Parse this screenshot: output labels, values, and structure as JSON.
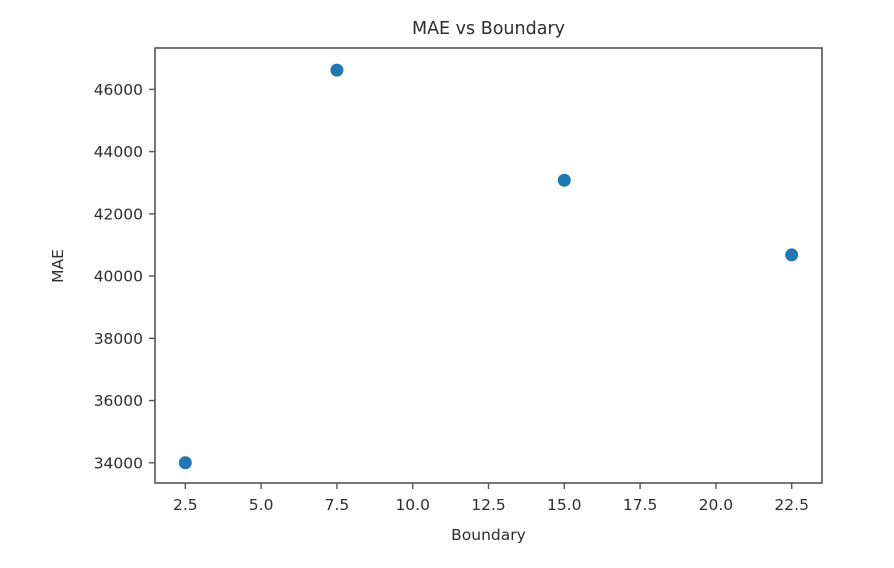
{
  "chart_data": {
    "type": "scatter",
    "title": "MAE vs Boundary",
    "xlabel": "Boundary",
    "ylabel": "MAE",
    "points": [
      {
        "x": 2.5,
        "y": 34000
      },
      {
        "x": 7.5,
        "y": 46620
      },
      {
        "x": 15.0,
        "y": 43080
      },
      {
        "x": 22.5,
        "y": 40680
      }
    ],
    "xlim": [
      1.5,
      23.5
    ],
    "ylim": [
      33350,
      47330
    ],
    "x_ticks": [
      2.5,
      5.0,
      7.5,
      10.0,
      12.5,
      15.0,
      17.5,
      20.0,
      22.5
    ],
    "x_tick_labels": [
      "2.5",
      "5.0",
      "7.5",
      "10.0",
      "12.5",
      "15.0",
      "17.5",
      "20.0",
      "22.5"
    ],
    "y_ticks": [
      34000,
      36000,
      38000,
      40000,
      42000,
      44000,
      46000
    ],
    "y_tick_labels": [
      "34000",
      "36000",
      "38000",
      "40000",
      "42000",
      "44000",
      "46000"
    ],
    "grid": false,
    "legend_position": "none",
    "marker_color": "#1f77b4",
    "marker_radius_px": 6.5,
    "background_color": "#ffffff",
    "spine_color": "#555555",
    "text_color": "#2e2e2e"
  }
}
